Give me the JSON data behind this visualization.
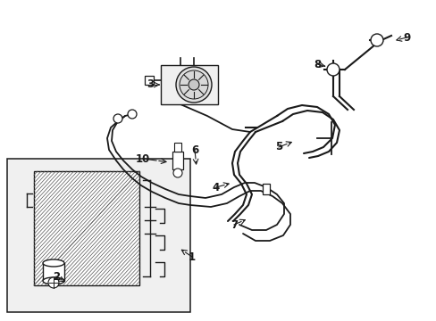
{
  "bg_color": "#ffffff",
  "line_color": "#1a1a1a",
  "gray_fill": "#e8e8e8",
  "fig_width": 4.89,
  "fig_height": 3.6,
  "dpi": 100
}
